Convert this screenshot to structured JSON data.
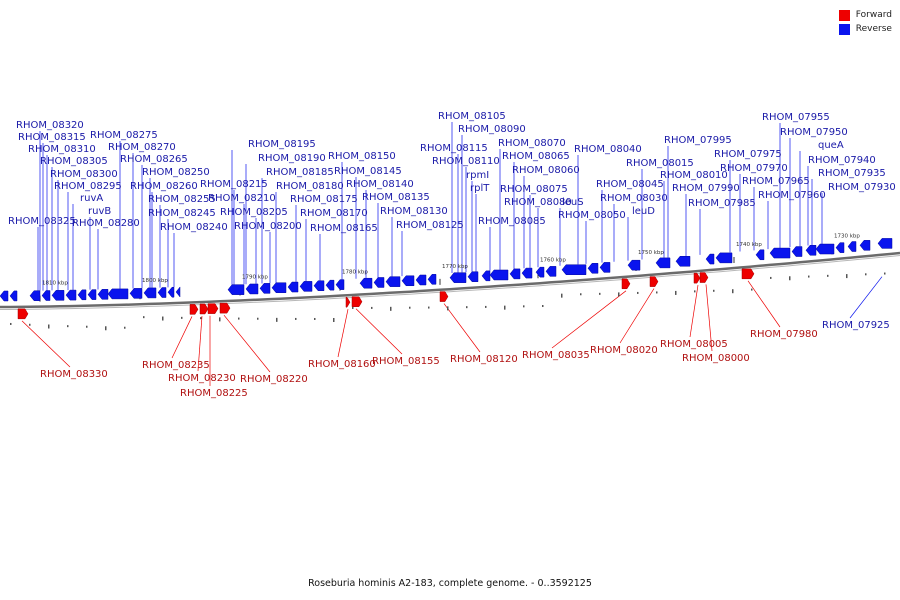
{
  "legend": {
    "forward_label": "Forward",
    "reverse_label": "Reverse",
    "forward_color": "#ee0000",
    "reverse_color": "#0a14ee"
  },
  "caption": "Roseburia hominis A2-183, complete genome. - 0..3592125",
  "ticks": [
    "1810 kbp",
    "1800 kbp",
    "1790 kbp",
    "1780 kbp",
    "1770 kbp",
    "1760 kbp",
    "1750 kbp",
    "1740 kbp",
    "1730 kbp"
  ],
  "reverse_labels": [
    "RHOM_08320",
    "RHOM_08315",
    "RHOM_08310",
    "RHOM_08305",
    "RHOM_08300",
    "RHOM_08295",
    "ruvA",
    "ruvB",
    "RHOM_08325",
    "RHOM_08280",
    "RHOM_08275",
    "RHOM_08270",
    "RHOM_08265",
    "RHOM_08250",
    "RHOM_08260",
    "RHOM_08255",
    "RHOM_08245",
    "RHOM_08240",
    "RHOM_08195",
    "RHOM_08190",
    "RHOM_08185",
    "RHOM_08180",
    "RHOM_08175",
    "RHOM_08170",
    "RHOM_08165",
    "RHOM_08215",
    "RHOM_08210",
    "RHOM_08205",
    "RHOM_08200",
    "RHOM_08150",
    "RHOM_08145",
    "RHOM_08140",
    "RHOM_08135",
    "RHOM_08130",
    "RHOM_08125",
    "RHOM_08105",
    "RHOM_08090",
    "RHOM_08115",
    "RHOM_08110",
    "rpmI",
    "rplT",
    "RHOM_08085",
    "RHOM_08070",
    "RHOM_08065",
    "RHOM_08060",
    "RHOM_08075",
    "RHOM_08080",
    "leuS",
    "RHOM_08050",
    "RHOM_08040",
    "RHOM_08045",
    "RHOM_08030",
    "leuD",
    "RHOM_08015",
    "RHOM_08010",
    "RHOM_07995",
    "RHOM_07990",
    "RHOM_07985",
    "RHOM_07975",
    "RHOM_07970",
    "RHOM_07965",
    "RHOM_07960",
    "RHOM_07955",
    "RHOM_07950",
    "queA",
    "RHOM_07940",
    "RHOM_07935",
    "RHOM_07930",
    "RHOM_07925"
  ],
  "forward_labels": [
    "RHOM_08330",
    "RHOM_08235",
    "RHOM_08230",
    "RHOM_08225",
    "RHOM_08220",
    "RHOM_08160",
    "RHOM_08155",
    "RHOM_08120",
    "RHOM_08035",
    "RHOM_08020",
    "RHOM_08005",
    "RHOM_08000",
    "RHOM_07980"
  ]
}
